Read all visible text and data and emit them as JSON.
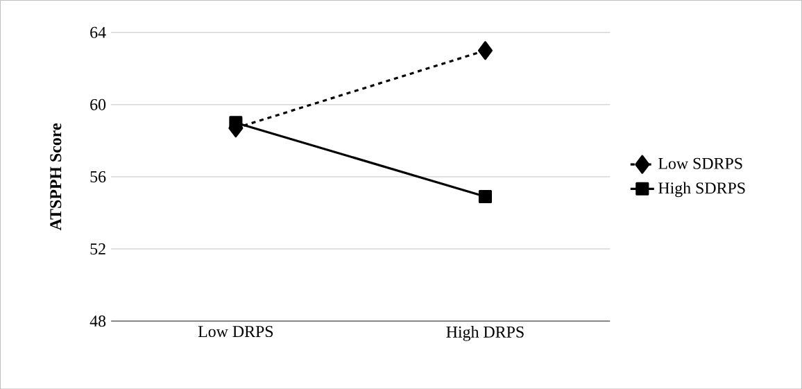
{
  "chart_data": {
    "type": "line",
    "ylabel": "ATSPPH Score",
    "categories": [
      "Low DRPS",
      "High DRPS"
    ],
    "series": [
      {
        "name": "Low SDRPS",
        "color": "#000000",
        "values": [
          58.7,
          63.0
        ],
        "marker": "diamond",
        "line_style": "dashed"
      },
      {
        "name": "High SDRPS",
        "color": "#000000",
        "values": [
          59.0,
          54.9
        ],
        "marker": "square",
        "line_style": "solid"
      }
    ],
    "ylim": [
      48,
      64
    ],
    "yticks": [
      48,
      52,
      56,
      60,
      64
    ],
    "grid": "y",
    "legend": "right"
  }
}
